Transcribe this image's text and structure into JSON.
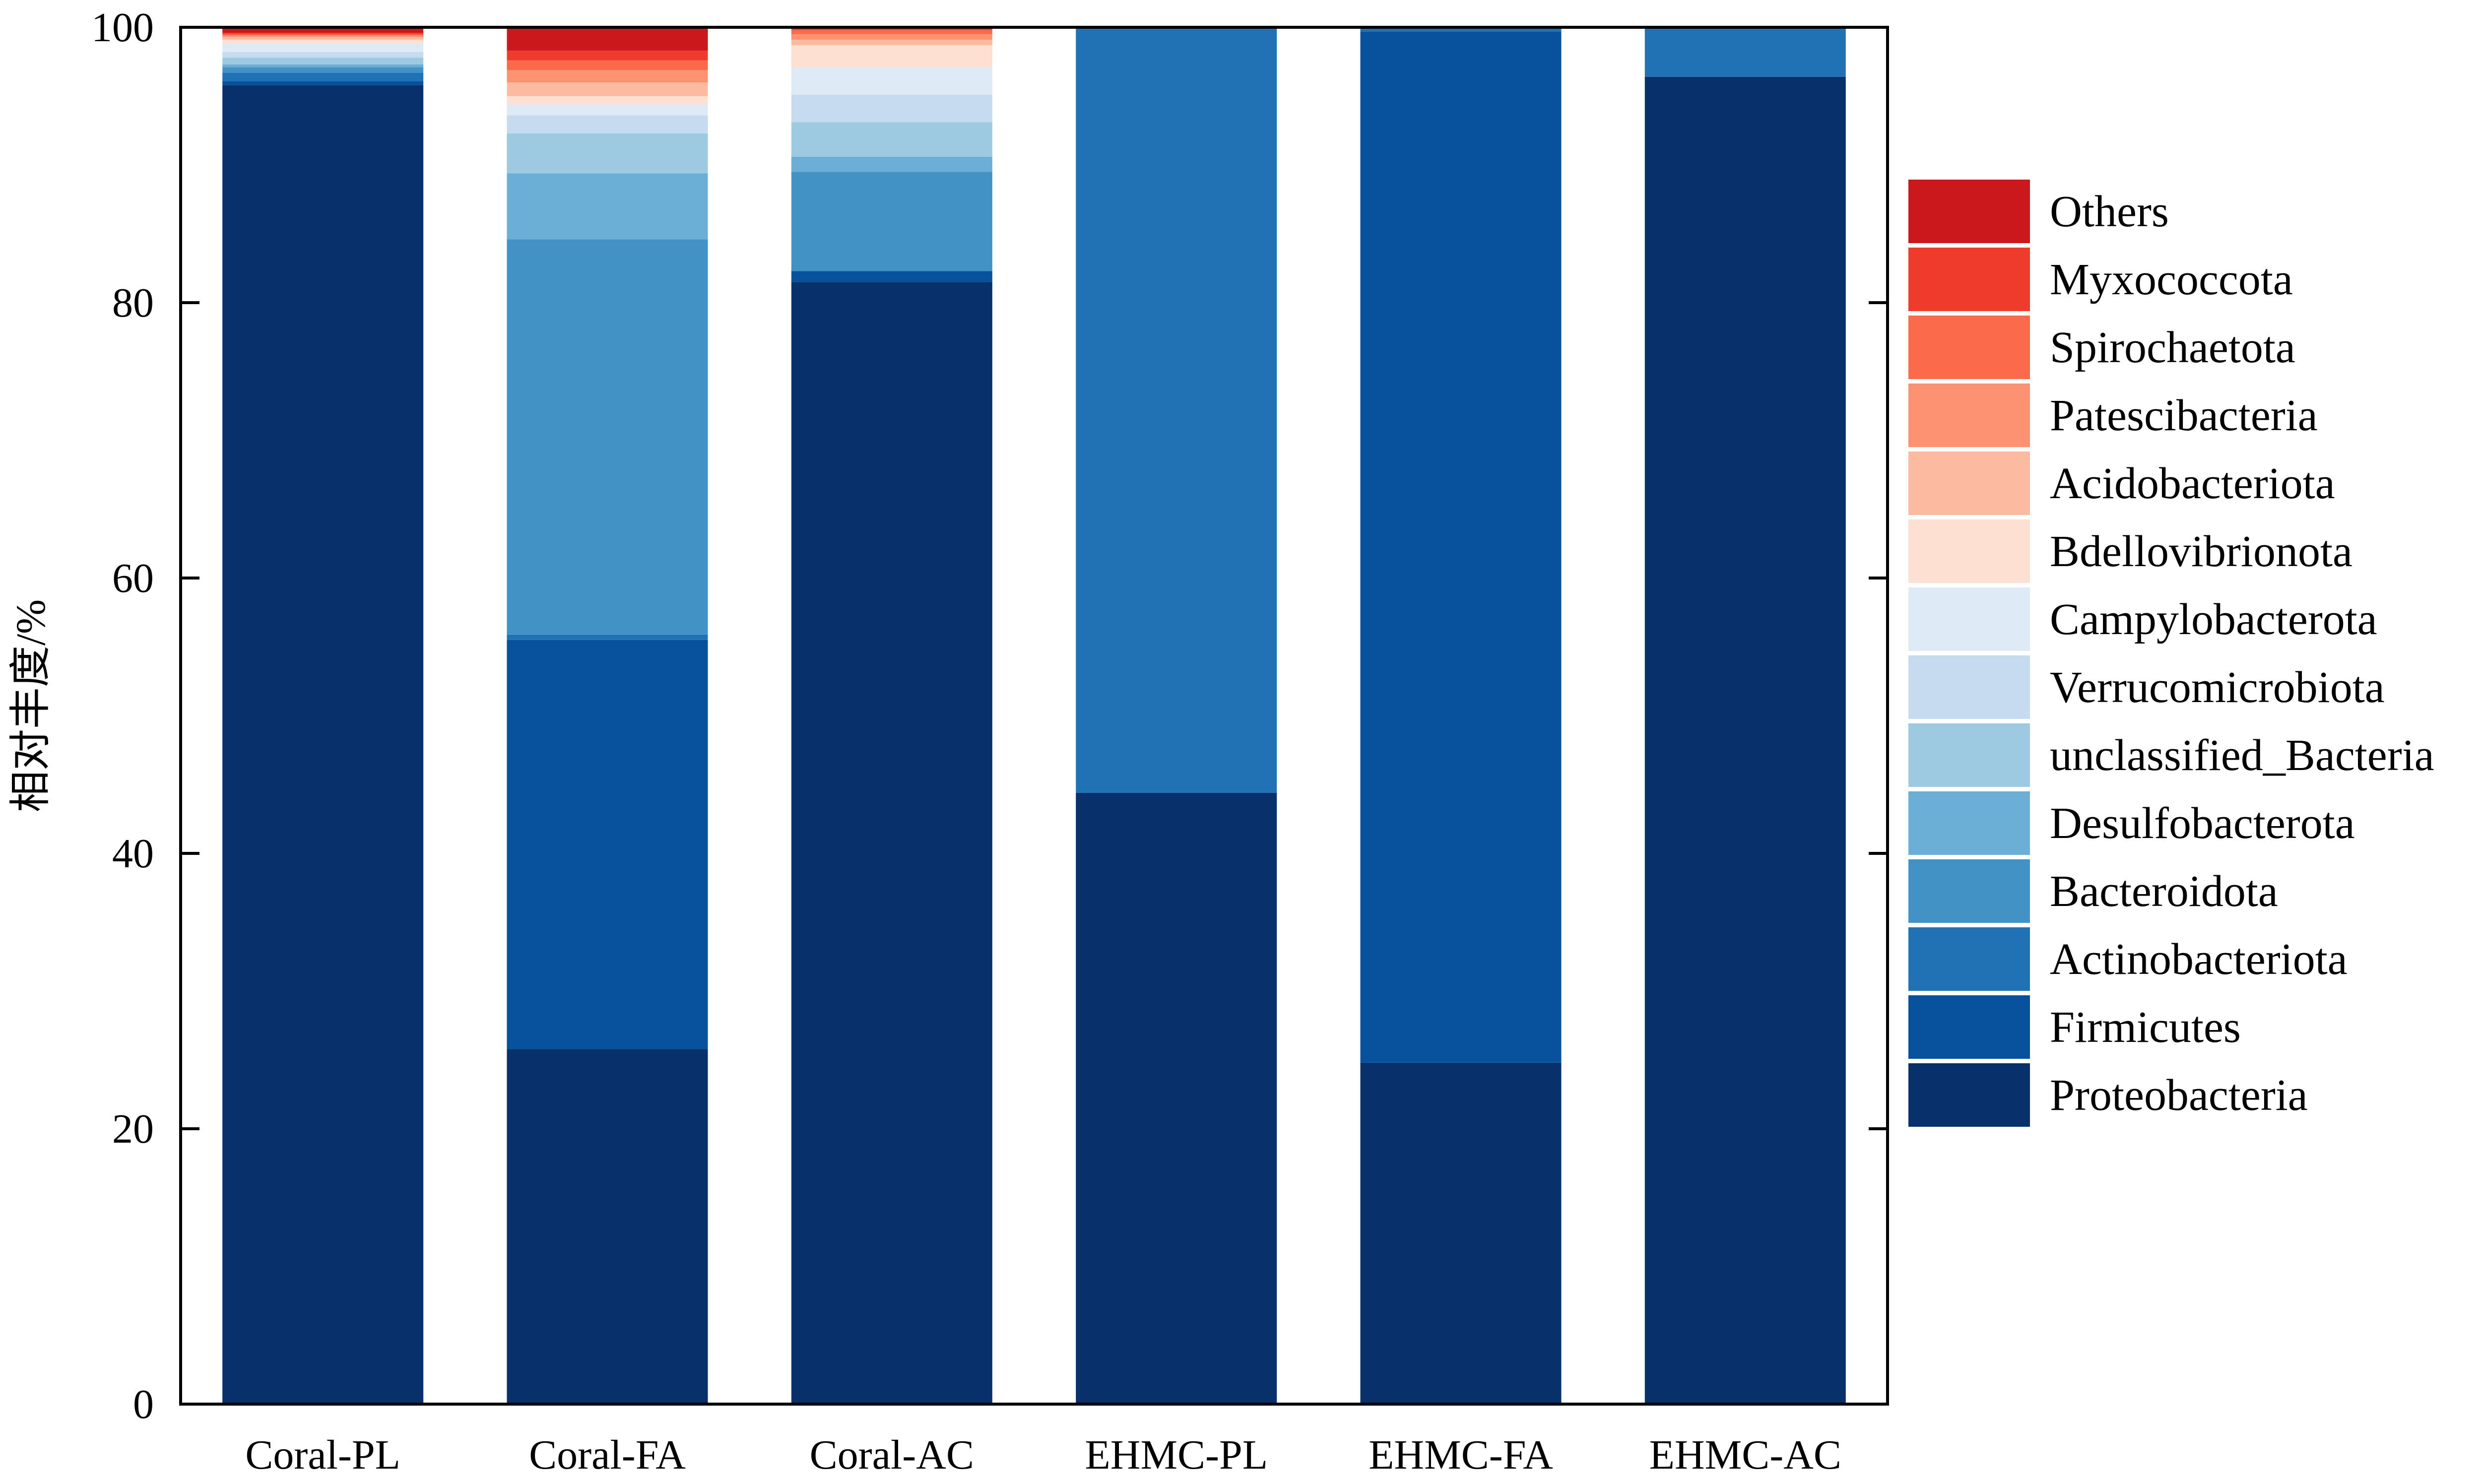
{
  "chart_data": {
    "type": "bar",
    "stacked": true,
    "categories": [
      "Coral-PL",
      "Coral-FA",
      "Coral-AC",
      "EHMC-PL",
      "EHMC-FA",
      "EHMC-AC"
    ],
    "ylabel": "相对丰度/%",
    "xlabel": "",
    "ylim": [
      0,
      100
    ],
    "yticks": [
      0,
      20,
      40,
      60,
      80,
      100
    ],
    "grid": false,
    "legend_position": "right",
    "series": [
      {
        "name": "Proteobacteria",
        "color": "#08306b",
        "values": [
          95.8,
          25.8,
          81.5,
          44.4,
          24.8,
          96.4
        ]
      },
      {
        "name": "Firmicutes",
        "color": "#08519c",
        "values": [
          0.3,
          29.7,
          0.8,
          0.0,
          74.9,
          0.0
        ]
      },
      {
        "name": "Actinobacteriota",
        "color": "#2171b5",
        "values": [
          0.6,
          0.4,
          0.0,
          55.6,
          0.3,
          3.6
        ]
      },
      {
        "name": "Bacteroidota",
        "color": "#4292c6",
        "values": [
          0.4,
          28.7,
          7.2,
          0.0,
          0.0,
          0.0
        ]
      },
      {
        "name": "Desulfobacterota",
        "color": "#6baed6",
        "values": [
          0.2,
          4.8,
          1.1,
          0.0,
          0.0,
          0.0
        ]
      },
      {
        "name": "unclassified_Bacteria",
        "color": "#9ecae1",
        "values": [
          0.5,
          2.9,
          2.5,
          0.0,
          0.0,
          0.0
        ]
      },
      {
        "name": "Verrucomicrobiota",
        "color": "#c6dbef",
        "values": [
          0.4,
          1.3,
          2.0,
          0.0,
          0.0,
          0.0
        ]
      },
      {
        "name": "Campylobacterota",
        "color": "#deebf7",
        "values": [
          0.6,
          0.8,
          2.0,
          0.0,
          0.0,
          0.0
        ]
      },
      {
        "name": "Bdellovibrionota",
        "color": "#fee0d2",
        "values": [
          0.3,
          0.6,
          1.6,
          0.0,
          0.0,
          0.0
        ]
      },
      {
        "name": "Acidobacteriota",
        "color": "#fcbba1",
        "values": [
          0.2,
          1.0,
          0.4,
          0.0,
          0.0,
          0.0
        ]
      },
      {
        "name": "Patescibacteria",
        "color": "#fc9272",
        "values": [
          0.1,
          0.9,
          0.4,
          0.0,
          0.0,
          0.0
        ]
      },
      {
        "name": "Spirochaetota",
        "color": "#fb6a4a",
        "values": [
          0.1,
          0.7,
          0.3,
          0.0,
          0.0,
          0.0
        ]
      },
      {
        "name": "Myxococcota",
        "color": "#ef3b2c",
        "values": [
          0.1,
          0.7,
          0.1,
          0.0,
          0.0,
          0.0
        ]
      },
      {
        "name": "Others",
        "color": "#cb181d",
        "values": [
          0.4,
          1.7,
          0.1,
          0.0,
          0.0,
          0.0
        ]
      }
    ]
  }
}
